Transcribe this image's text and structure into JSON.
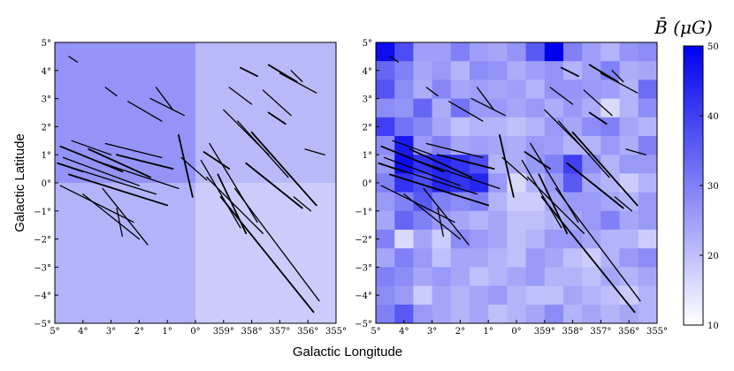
{
  "chart_data": [
    {
      "type": "heatmap",
      "panel": "left",
      "xlabel": "Galactic Longitude",
      "ylabel": "Galactic Latitude",
      "xticks": [
        "5°",
        "4°",
        "3°",
        "2°",
        "1°",
        "0°",
        "359°",
        "358°",
        "357°",
        "356°",
        "355°"
      ],
      "yticks": [
        "5°",
        "4°",
        "3°",
        "2°",
        "1°",
        "0°",
        "−1°",
        "−2°",
        "−3°",
        "−4°",
        "−5°"
      ],
      "xlim": [
        5,
        -5
      ],
      "ylim": [
        -5,
        5
      ],
      "note_regions": [
        {
          "l_range": [
            5,
            0
          ],
          "b_range": [
            0,
            5
          ],
          "B_uG": 27
        },
        {
          "l_range": [
            0,
            -5
          ],
          "b_range": [
            0,
            5
          ],
          "B_uG": 21
        },
        {
          "l_range": [
            5,
            0
          ],
          "b_range": [
            -5,
            0
          ],
          "B_uG": 22
        },
        {
          "l_range": [
            0,
            -5
          ],
          "b_range": [
            -5,
            0
          ],
          "B_uG": 18
        }
      ]
    },
    {
      "type": "heatmap",
      "panel": "right",
      "xlim": [
        5,
        -5
      ],
      "ylim": [
        -5,
        5
      ],
      "xticks": [
        "5°",
        "4°",
        "3°",
        "2°",
        "1°",
        "0°",
        "359°",
        "358°",
        "357°",
        "356°",
        "355°"
      ],
      "yticks": [
        "5°",
        "4°",
        "3°",
        "2°",
        "1°",
        "0°",
        "−1°",
        "−2°",
        "−3°",
        "−4°",
        "−5°"
      ],
      "grid_note": "15x15 cells, rows from b=+5 (top) to b=-5 (bottom), columns from l=+5 (left) to l=-5 (right), values in μG",
      "values": [
        [
          48,
          38,
          25,
          25,
          30,
          25,
          24,
          27,
          36,
          52,
          30,
          25,
          22,
          27,
          28
        ],
        [
          34,
          30,
          24,
          26,
          22,
          28,
          27,
          23,
          25,
          27,
          22,
          25,
          30,
          23,
          24
        ],
        [
          37,
          28,
          23,
          29,
          24,
          25,
          24,
          25,
          22,
          27,
          27,
          26,
          25,
          22,
          33
        ],
        [
          28,
          27,
          34,
          23,
          32,
          26,
          26,
          24,
          26,
          23,
          26,
          23,
          16,
          22,
          28
        ],
        [
          40,
          32,
          29,
          24,
          20,
          22,
          22,
          20,
          22,
          26,
          24,
          28,
          30,
          24,
          22
        ],
        [
          28,
          46,
          26,
          30,
          24,
          25,
          24,
          23,
          26,
          25,
          22,
          22,
          26,
          23,
          30
        ],
        [
          26,
          48,
          42,
          44,
          42,
          38,
          22,
          23,
          26,
          30,
          40,
          28,
          22,
          26,
          26
        ],
        [
          30,
          42,
          38,
          44,
          42,
          44,
          26,
          16,
          22,
          26,
          36,
          24,
          22,
          18,
          22
        ],
        [
          26,
          30,
          36,
          30,
          28,
          30,
          22,
          18,
          18,
          24,
          26,
          26,
          24,
          22,
          26
        ],
        [
          24,
          34,
          30,
          26,
          24,
          22,
          24,
          20,
          20,
          22,
          24,
          26,
          30,
          24,
          26
        ],
        [
          30,
          16,
          24,
          18,
          28,
          26,
          24,
          20,
          22,
          26,
          26,
          24,
          22,
          22,
          18
        ],
        [
          24,
          30,
          26,
          20,
          24,
          24,
          22,
          20,
          26,
          24,
          20,
          18,
          22,
          26,
          28
        ],
        [
          30,
          28,
          24,
          26,
          24,
          20,
          22,
          24,
          26,
          22,
          22,
          20,
          24,
          22,
          24
        ],
        [
          28,
          26,
          18,
          24,
          22,
          24,
          26,
          22,
          20,
          20,
          24,
          22,
          20,
          18,
          22
        ],
        [
          30,
          36,
          26,
          24,
          22,
          24,
          20,
          22,
          24,
          28,
          22,
          24,
          22,
          24,
          22
        ]
      ]
    }
  ],
  "colorbar": {
    "title": "B̄ (μG)",
    "ticks": [
      10,
      20,
      30,
      40,
      50
    ],
    "min": 10,
    "max": 50,
    "color_low": "#ffffff",
    "color_high": "#0000ee"
  },
  "filament_color": "#000000"
}
